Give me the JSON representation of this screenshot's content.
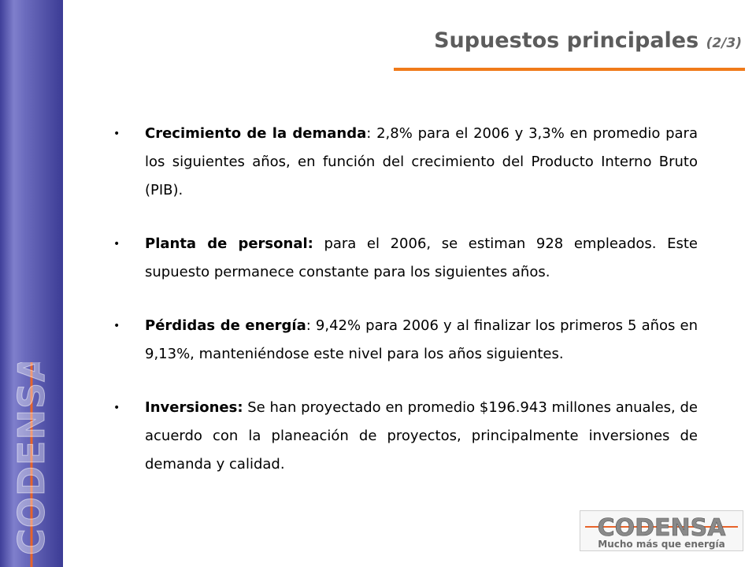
{
  "header": {
    "title": "Supuestos principales",
    "subtitle": "(2/3)"
  },
  "bullets": [
    {
      "term": "Crecimiento de la demanda",
      "text": ": 2,8% para el 2006 y 3,3% en promedio para los siguientes años, en función del crecimiento del Producto Interno Bruto (PIB)."
    },
    {
      "term": "Planta de personal:",
      "text": " para el 2006, se estiman 928 empleados.  Este supuesto permanece constante para los siguientes años."
    },
    {
      "term": "Pérdidas de energía",
      "text": ": 9,42% para 2006 y al finalizar los primeros 5 años en 9,13%, manteniéndose este nivel para los años siguientes."
    },
    {
      "term": "Inversiones:",
      "text": " Se han proyectado  en promedio $196.943 millones anuales, de acuerdo con la planeación de proyectos, principalmente inversiones de demanda y calidad."
    }
  ],
  "branding": {
    "side_logo_text": "CODENSA",
    "logo_name": "CODENSA",
    "logo_tagline": "Mucho más que energía",
    "sidebar_color": "#4a4aa5",
    "accent_color": "#f07a1a"
  }
}
